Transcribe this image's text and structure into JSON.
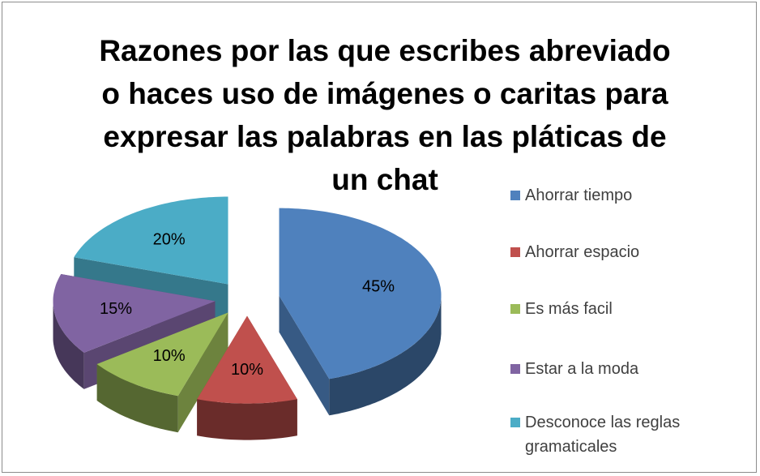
{
  "chart_data": {
    "type": "pie",
    "title": "Razones por las que  escribes abreviado o haces uso de imágenes o caritas para expresar las palabras en las pláticas de un chat",
    "categories": [
      "Ahorrar tiempo",
      "Ahorrar espacio",
      "Es más facil",
      "Estar a la moda",
      "Desconoce las reglas gramaticales"
    ],
    "values": [
      45,
      10,
      10,
      15,
      20
    ],
    "value_labels": [
      "45%",
      "10%",
      "10%",
      "15%",
      "20%"
    ],
    "colors": [
      "#4f81bd",
      "#c0504d",
      "#9bbb59",
      "#8064a2",
      "#4bacc6"
    ],
    "legend": "right"
  }
}
